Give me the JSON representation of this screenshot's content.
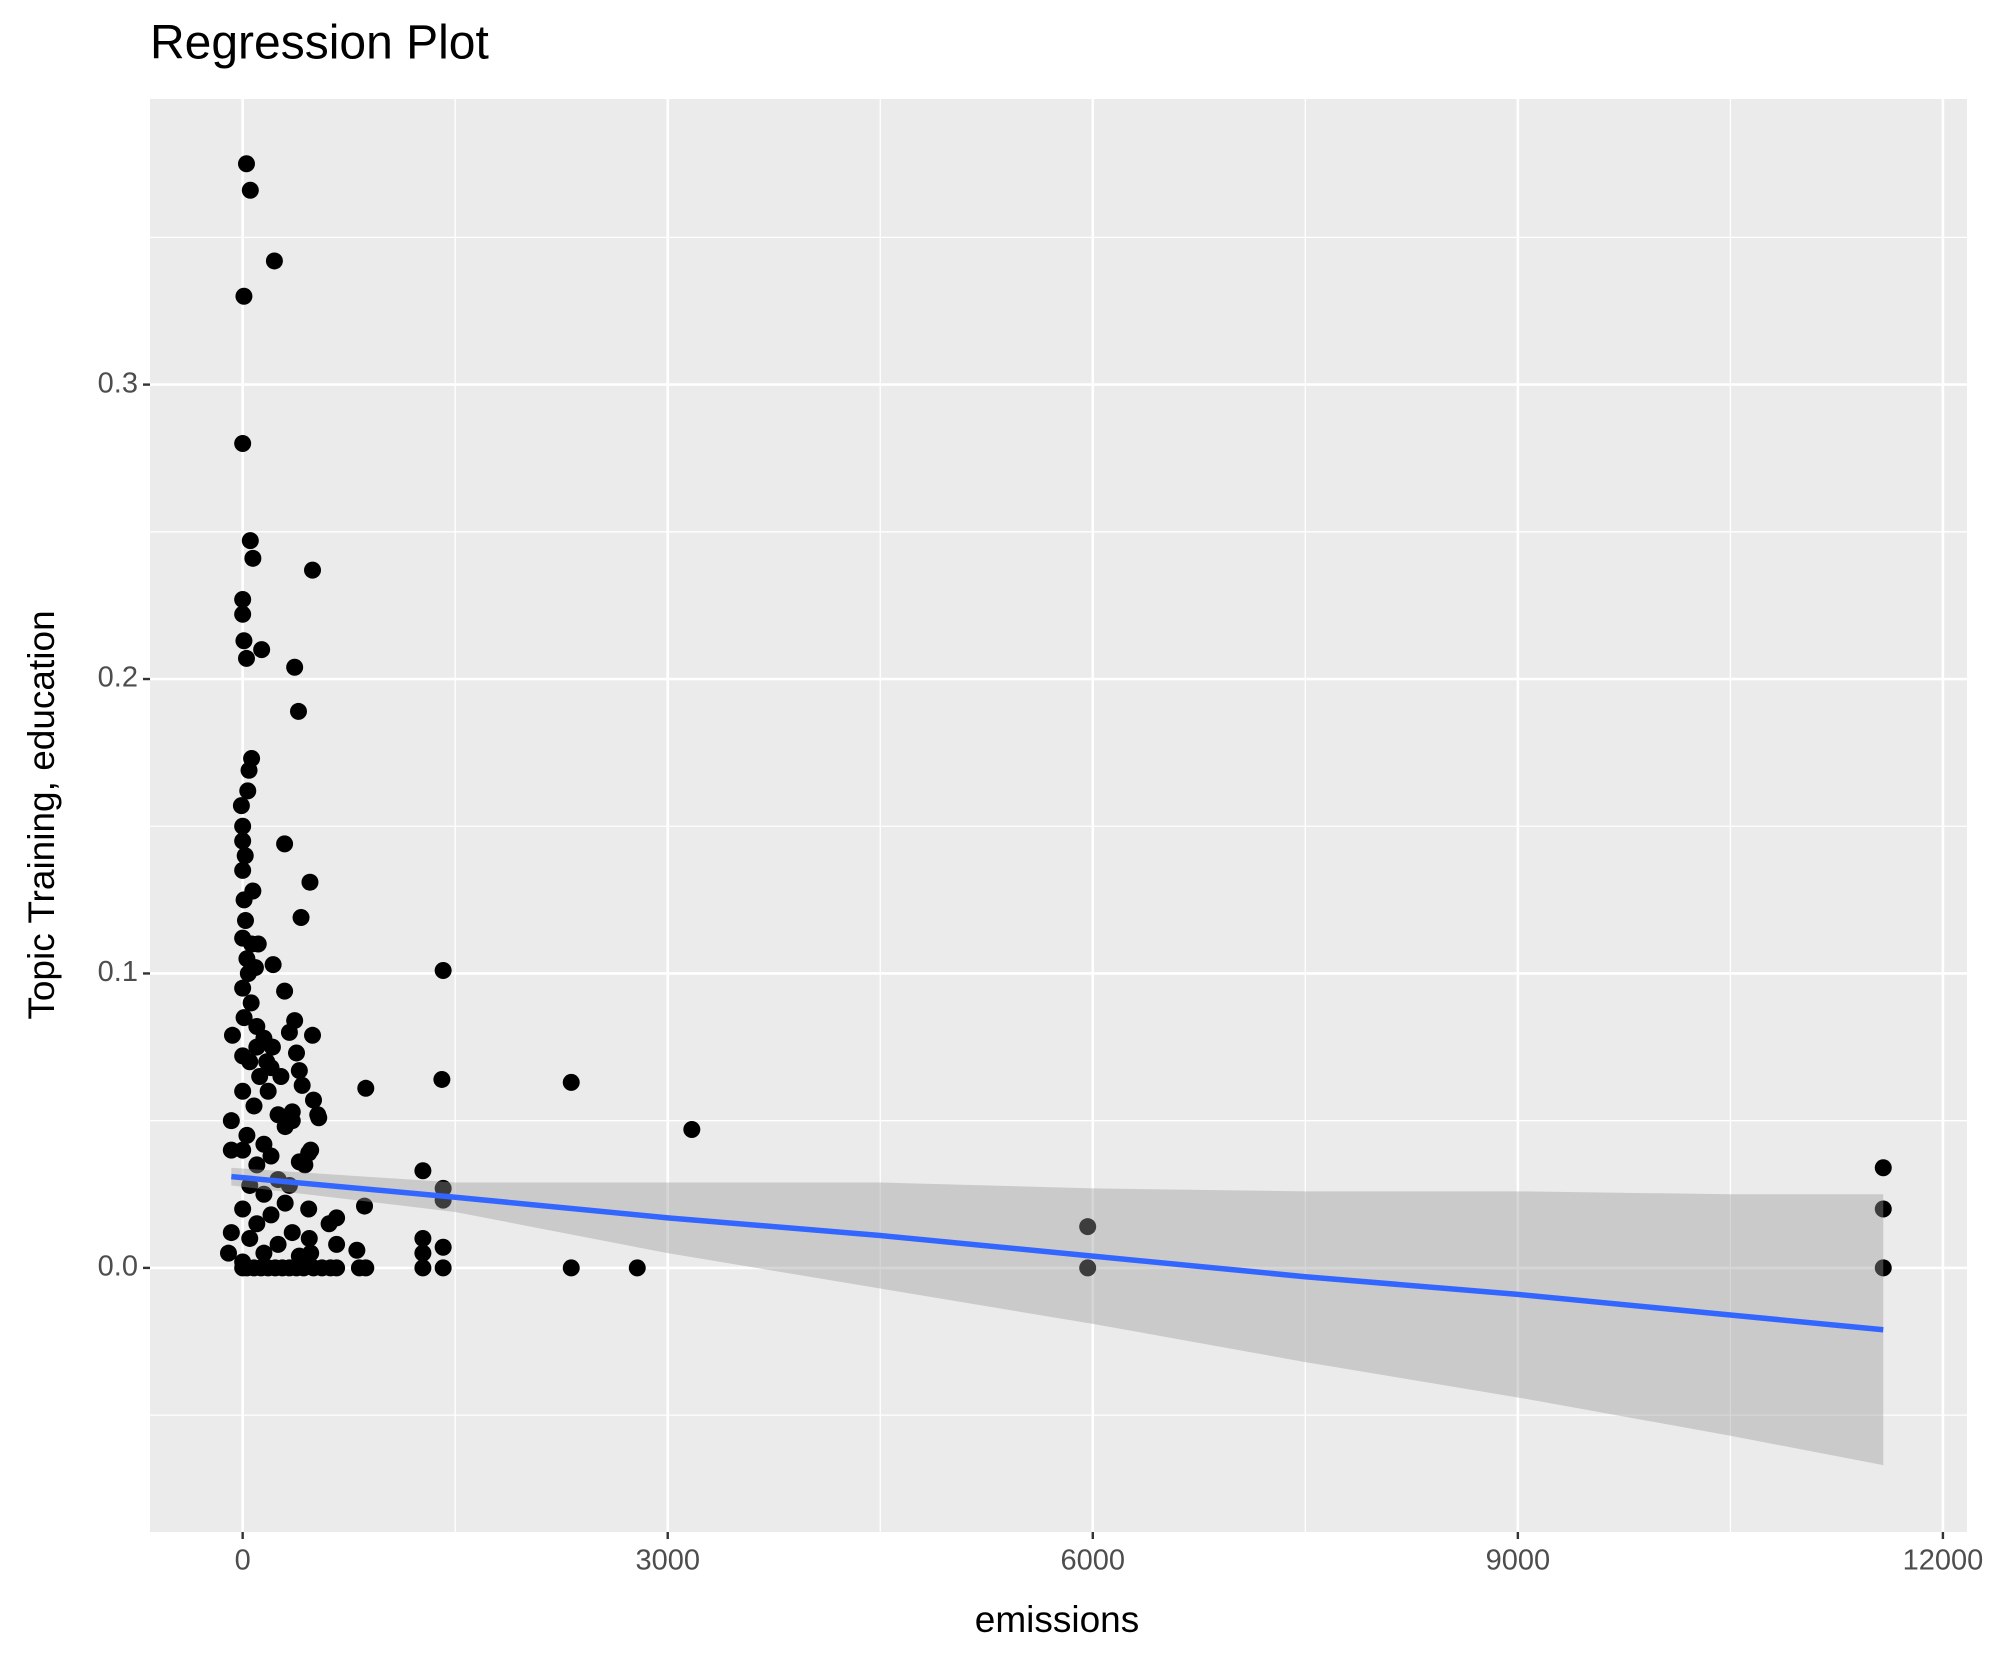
{
  "chart_data": {
    "type": "scatter",
    "title": "Regression Plot",
    "x_label": "emissions",
    "y_label": "Topic Training, education",
    "x": [
      27,
      54,
      224,
      9,
      0,
      54,
      72,
      493,
      0,
      0,
      9,
      27,
      134,
      367,
      394,
      63,
      45,
      36,
      -9,
      0,
      296,
      18,
      475,
      72,
      412,
      63,
      215,
      296,
      1415,
      367,
      493,
      -72,
      869,
      1406,
      2319,
      3170,
      1272,
      1415,
      1415,
      5964,
      5964,
      11579,
      11579,
      11579,
      2319,
      2785,
      1415,
      1272,
      1272,
      1272,
      1415,
      869,
      824,
      806,
      860,
      663,
      663,
      663,
      466,
      537,
      466,
      439,
      350,
      170,
      100,
      0,
      0,
      10,
      20,
      0,
      30,
      40,
      0,
      60,
      10,
      100,
      150,
      0,
      50,
      200,
      120,
      0,
      180,
      80,
      250,
      300,
      30,
      350,
      150,
      0,
      -80,
      -80,
      200,
      100,
      400,
      250,
      50,
      150,
      300,
      0,
      200,
      100,
      350,
      -80,
      50,
      250,
      150,
      400,
      -100,
      0,
      30,
      80,
      130,
      180,
      230,
      280,
      330,
      380,
      430,
      500,
      560,
      620,
      0,
      210,
      110,
      90,
      270,
      330,
      380,
      400,
      420,
      500,
      530,
      480,
      330,
      470,
      480,
      610
    ],
    "y": [
      0.375,
      0.366,
      0.342,
      0.33,
      0.28,
      0.247,
      0.241,
      0.237,
      0.227,
      0.222,
      0.213,
      0.207,
      0.21,
      0.204,
      0.189,
      0.173,
      0.169,
      0.162,
      0.157,
      0.15,
      0.144,
      0.14,
      0.131,
      0.128,
      0.119,
      0.11,
      0.103,
      0.094,
      0.101,
      0.084,
      0.079,
      0.079,
      0.061,
      0.064,
      0.063,
      0.047,
      0.033,
      0.027,
      0.023,
      0.014,
      0,
      0.034,
      0.02,
      0,
      0,
      0,
      0,
      0,
      0.01,
      0.005,
      0.007,
      0,
      0,
      0.006,
      0.021,
      0.017,
      0.008,
      0,
      0.02,
      0.051,
      0.039,
      0.035,
      0.053,
      0.07,
      0.075,
      0.145,
      0.135,
      0.125,
      0.118,
      0.112,
      0.105,
      0.1,
      0.095,
      0.09,
      0.085,
      0.082,
      0.078,
      0.072,
      0.07,
      0.068,
      0.065,
      0.06,
      0.06,
      0.055,
      0.052,
      0.048,
      0.045,
      0.05,
      0.042,
      0.04,
      0.04,
      0.05,
      0.038,
      0.035,
      0.036,
      0.03,
      0.028,
      0.025,
      0.022,
      0.02,
      0.018,
      0.015,
      0.012,
      0.012,
      0.01,
      0.008,
      0.005,
      0.004,
      0.005,
      0.002,
      0,
      0,
      0,
      0,
      0,
      0,
      0,
      0,
      0,
      0,
      0,
      0,
      0,
      0.075,
      0.11,
      0.102,
      0.065,
      0.08,
      0.073,
      0.067,
      0.062,
      0.057,
      0.052,
      0.04,
      0.028,
      0.01,
      0.005,
      0.015
    ],
    "color": "#000000",
    "fit": {
      "x": [
        -80,
        1500,
        3000,
        4500,
        6000,
        7500,
        9000,
        10500,
        11579
      ],
      "y": [
        0.031,
        0.024,
        0.017,
        0.011,
        0.004,
        -0.003,
        -0.009,
        -0.016,
        -0.021
      ],
      "ymin": [
        0.028,
        0.019,
        0.005,
        -0.007,
        -0.019,
        -0.032,
        -0.044,
        -0.057,
        -0.067
      ],
      "ymax": [
        0.034,
        0.029,
        0.029,
        0.029,
        0.027,
        0.026,
        0.026,
        0.025,
        0.025
      ],
      "color": "#3366ff",
      "band_color": "#999999"
    },
    "xlim": [
      -654,
      12170
    ],
    "ylim": [
      -0.0897,
      0.397
    ],
    "xticks": [
      0,
      3000,
      6000,
      9000,
      12000
    ],
    "yticks": [
      {
        "value": 0,
        "label": "0.0"
      },
      0.1,
      0.2,
      0.3
    ],
    "grid": true
  }
}
